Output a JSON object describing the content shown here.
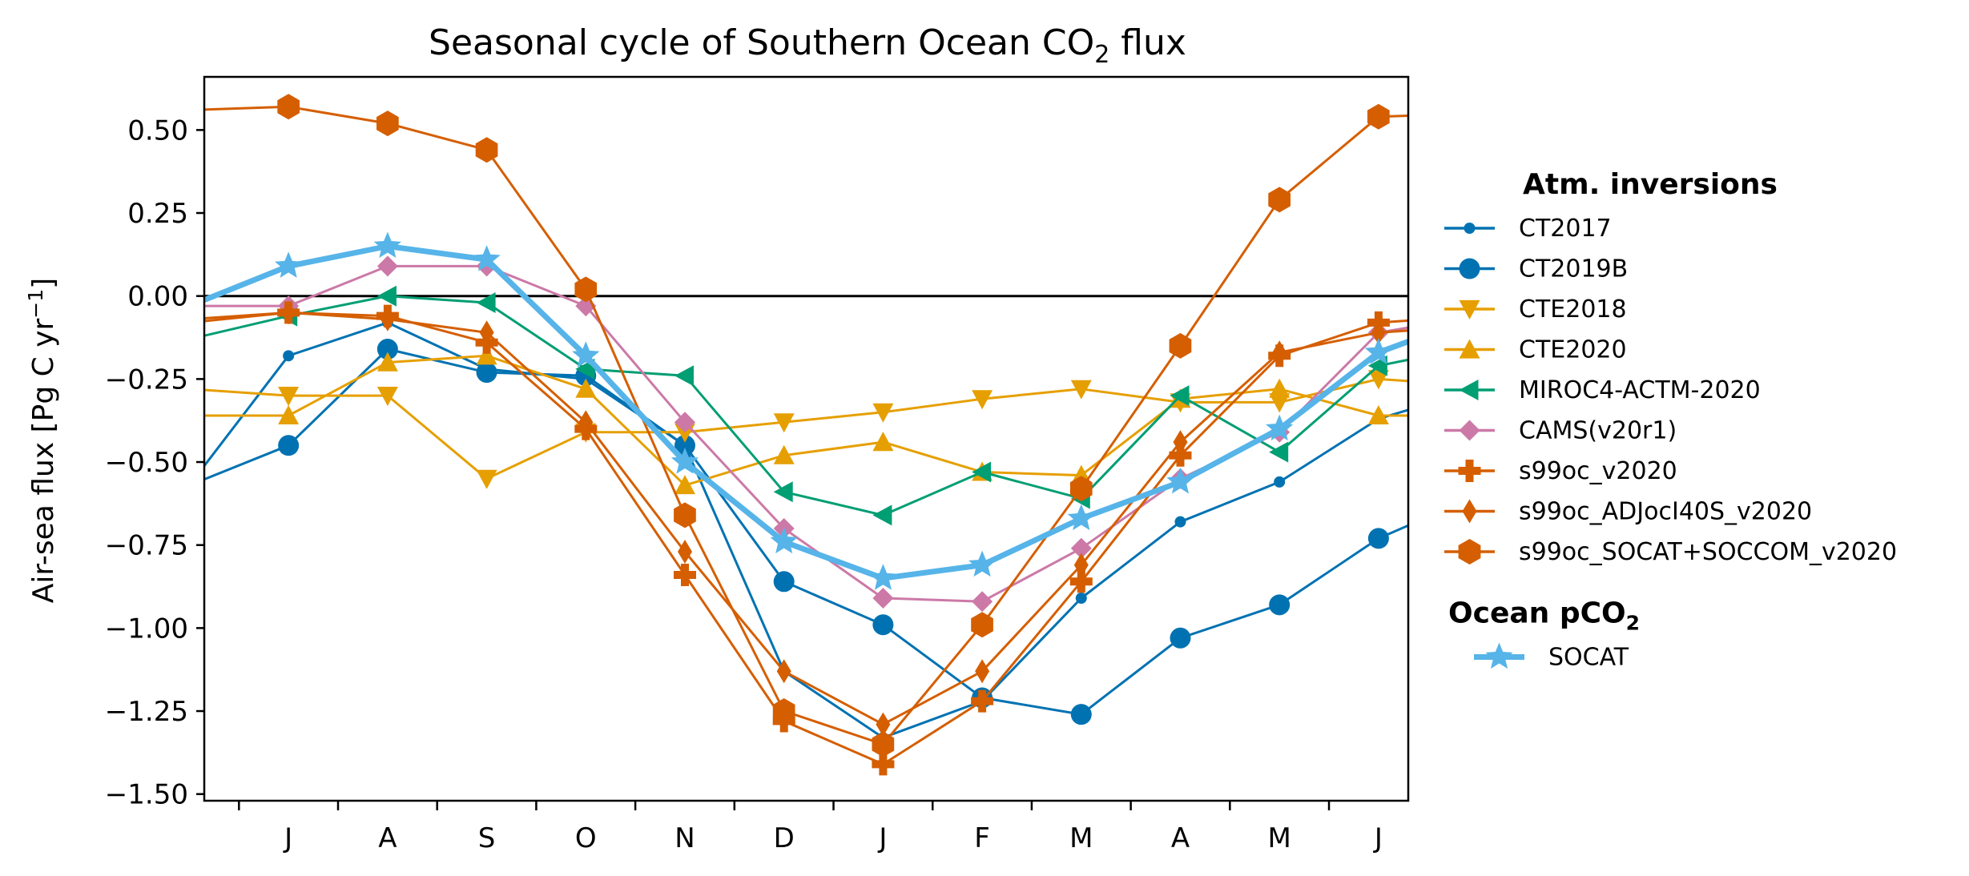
{
  "chart_data": {
    "type": "line",
    "title": "Seasonal cycle of Southern Ocean CO2 flux",
    "title_parts": {
      "before": "Seasonal cycle of Southern Ocean CO",
      "sub": "2",
      "after": " flux"
    },
    "xlabel": "",
    "ylabel": "Air-sea flux [Pg C yr⁻¹]",
    "ylabel_parts": {
      "before": "Air-sea flux [Pg C yr",
      "sup": "−1",
      "after": "]"
    },
    "ylim": [
      -1.52,
      0.66
    ],
    "yticks": [
      0.5,
      0.25,
      0.0,
      -0.25,
      -0.5,
      -0.75,
      -1.0,
      -1.25,
      -1.5
    ],
    "ytick_labels": [
      "0.50",
      "0.25",
      "0.00",
      "−0.25",
      "−0.50",
      "−0.75",
      "−1.00",
      "−1.25",
      "−1.50"
    ],
    "xlim": [
      0.15,
      12.3
    ],
    "categories": [
      "J",
      "A",
      "S",
      "O",
      "N",
      "D",
      "J",
      "F",
      "M",
      "A",
      "M",
      "J"
    ],
    "x": [
      1,
      2,
      3,
      4,
      5,
      6,
      7,
      8,
      9,
      10,
      11,
      12
    ],
    "zero_line": 0.0,
    "grid": false,
    "legend_placement": "outside right",
    "legend_groups": [
      {
        "title": "Atm. inversions",
        "series_names": [
          "CT2017",
          "CT2019B",
          "CTE2018",
          "CTE2020",
          "MIROC4-ACTM-2020",
          "CAMS(v20r1)",
          "s99oc_v2020",
          "s99oc_ADJocI40S_v2020",
          "s99oc_SOCAT+SOCCOM_v2020"
        ]
      },
      {
        "title": "Ocean pCO2",
        "title_parts": {
          "before": "Ocean pCO",
          "sub": "2"
        },
        "series_names": [
          "SOCAT"
        ]
      }
    ],
    "series": [
      {
        "name": "CT2017",
        "color": "#0072b2",
        "marker": "small-circle",
        "edge_left": -0.57,
        "edge_right": -0.28,
        "values": [
          -0.18,
          -0.08,
          -0.22,
          -0.25,
          -0.45,
          -1.13,
          -1.33,
          -1.22,
          -0.91,
          -0.68,
          -0.56,
          -0.37
        ]
      },
      {
        "name": "CT2019B",
        "color": "#0072b2",
        "marker": "circle",
        "edge_left": -0.57,
        "edge_right": -0.6,
        "values": [
          -0.45,
          -0.16,
          -0.23,
          -0.24,
          -0.45,
          -0.86,
          -0.99,
          -1.21,
          -1.26,
          -1.03,
          -0.93,
          -0.73
        ]
      },
      {
        "name": "CTE2018",
        "color": "#e69f00",
        "marker": "triangle-down",
        "edge_left": -0.28,
        "edge_right": -0.27,
        "values": [
          -0.3,
          -0.3,
          -0.55,
          -0.41,
          -0.41,
          -0.38,
          -0.35,
          -0.31,
          -0.28,
          -0.32,
          -0.32,
          -0.25
        ]
      },
      {
        "name": "CTE2020",
        "color": "#e69f00",
        "marker": "triangle-up",
        "edge_left": -0.36,
        "edge_right": -0.36,
        "values": [
          -0.36,
          -0.2,
          -0.18,
          -0.28,
          -0.57,
          -0.48,
          -0.44,
          -0.53,
          -0.54,
          -0.31,
          -0.28,
          -0.36
        ]
      },
      {
        "name": "MIROC4-ACTM-2020",
        "color": "#009e73",
        "marker": "triangle-left",
        "edge_left": -0.13,
        "edge_right": -0.15,
        "values": [
          -0.06,
          0.0,
          -0.02,
          -0.22,
          -0.24,
          -0.59,
          -0.66,
          -0.53,
          -0.61,
          -0.3,
          -0.47,
          -0.21
        ]
      },
      {
        "name": "CAMS(v20r1)",
        "color": "#cc79a7",
        "marker": "diamond",
        "edge_left": -0.03,
        "edge_right": -0.06,
        "values": [
          -0.03,
          0.09,
          0.09,
          -0.03,
          -0.38,
          -0.7,
          -0.91,
          -0.92,
          -0.76,
          -0.55,
          -0.41,
          -0.11
        ]
      },
      {
        "name": "s99oc_v2020",
        "color": "#d55e00",
        "marker": "plus",
        "edge_left": -0.07,
        "edge_right": -0.06,
        "values": [
          -0.05,
          -0.06,
          -0.14,
          -0.4,
          -0.84,
          -1.28,
          -1.41,
          -1.22,
          -0.86,
          -0.48,
          -0.18,
          -0.08
        ]
      },
      {
        "name": "s99oc_ADJocI40S_v2020",
        "color": "#d55e00",
        "marker": "thin-diamond",
        "edge_left": -0.08,
        "edge_right": -0.09,
        "values": [
          -0.05,
          -0.07,
          -0.11,
          -0.38,
          -0.77,
          -1.13,
          -1.29,
          -1.13,
          -0.81,
          -0.44,
          -0.17,
          -0.11
        ]
      },
      {
        "name": "s99oc_SOCAT+SOCCOM_v2020",
        "color": "#d55e00",
        "marker": "hexagon",
        "edge_left": 0.56,
        "edge_right": 0.55,
        "values": [
          0.57,
          0.52,
          0.44,
          0.02,
          -0.66,
          -1.25,
          -1.35,
          -0.99,
          -0.58,
          -0.15,
          0.29,
          0.54
        ]
      },
      {
        "name": "SOCAT",
        "color": "#56b4e9",
        "marker": "star",
        "edge_left": -0.03,
        "edge_right": -0.06,
        "values": [
          0.09,
          0.15,
          0.11,
          -0.18,
          -0.5,
          -0.74,
          -0.85,
          -0.81,
          -0.67,
          -0.56,
          -0.4,
          -0.17
        ]
      }
    ]
  }
}
